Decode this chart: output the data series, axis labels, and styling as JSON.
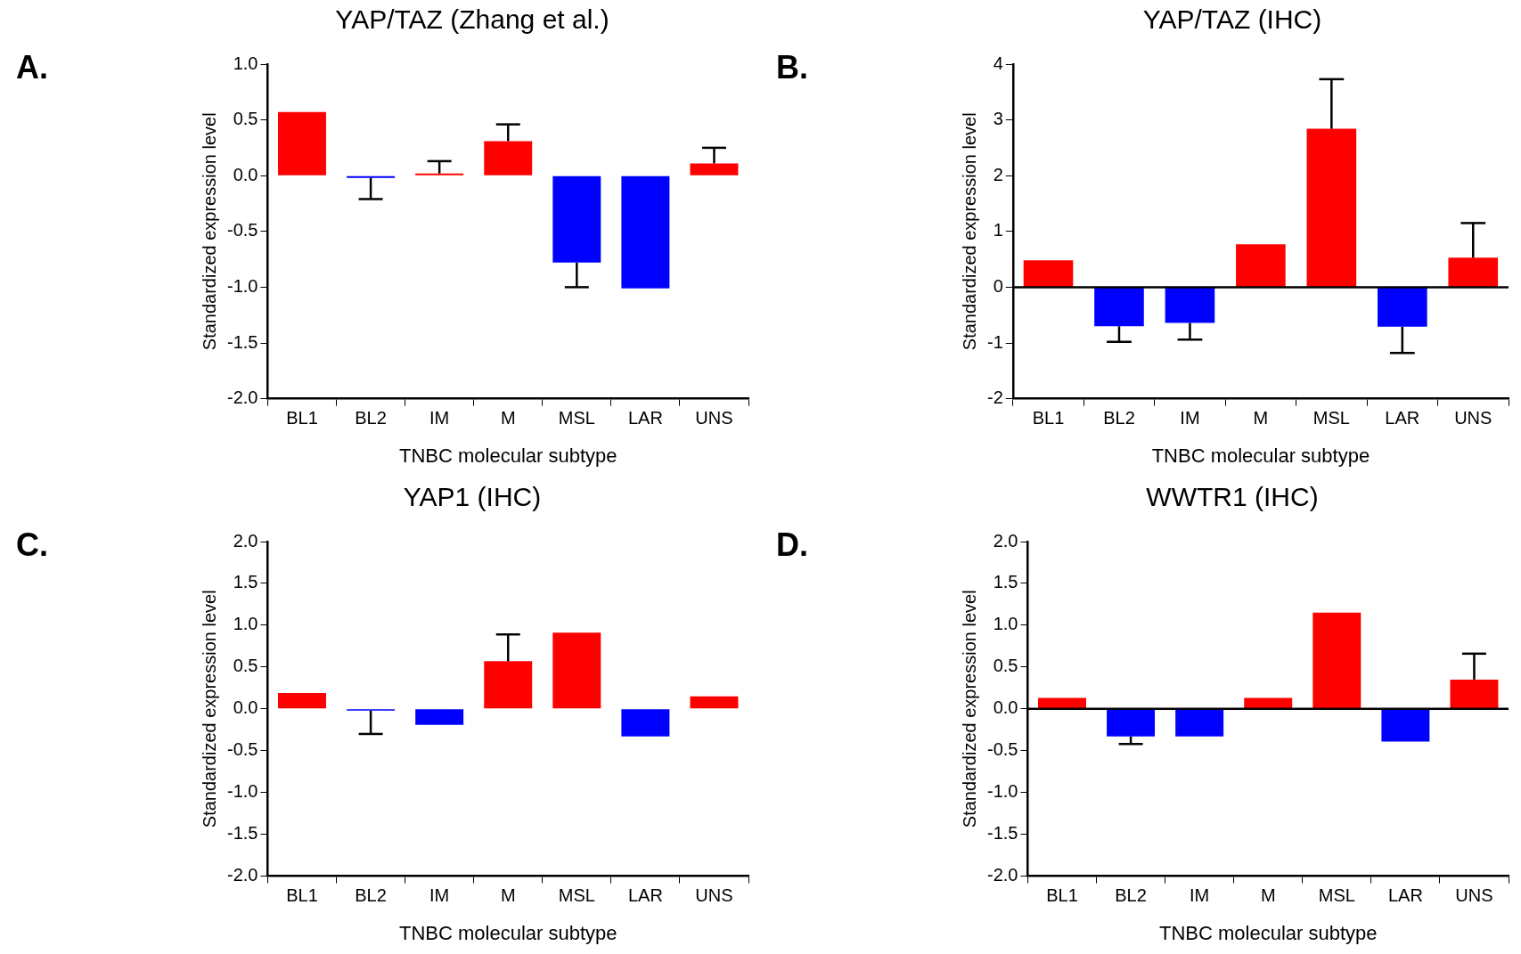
{
  "chart_data": [
    {
      "type": "bar",
      "title": "YAP/TAZ (Zhang et al.)",
      "xlabel": "TNBC molecular subtype",
      "ylabel": "Standardized expression level",
      "annotations": [
        "A."
      ],
      "categories": [
        "BL1",
        "BL2",
        "IM",
        "M",
        "MSL",
        "LAR",
        "UNS"
      ],
      "values": [
        0.57,
        -0.02,
        0.02,
        0.31,
        -0.78,
        -1.01,
        0.11
      ],
      "colors": [
        "#ff0000",
        "#0000ff",
        "#ff0000",
        "#ff0000",
        "#0000ff",
        "#0000ff",
        "#ff0000"
      ],
      "errors": [
        null,
        [
          -0.21,
          -0.02
        ],
        [
          0.02,
          0.13
        ],
        [
          0.31,
          0.46
        ],
        [
          -1.0,
          -0.78
        ],
        null,
        [
          0.11,
          0.25
        ]
      ],
      "ylim": [
        -2,
        1
      ],
      "yticks": [
        {
          "value": 1,
          "label": "1.0"
        },
        0.5,
        {
          "value": 0,
          "label": "0.0"
        },
        -0.5,
        {
          "value": -1,
          "label": "-1.0"
        },
        -1.5,
        {
          "value": -2,
          "label": "-2.0"
        }
      ],
      "grid": false,
      "legend": false
    },
    {
      "type": "bar",
      "title": "YAP/TAZ (IHC)",
      "xlabel": "TNBC molecular subtype",
      "ylabel": "Standardized expression level",
      "annotations": [
        "B."
      ],
      "categories": [
        "BL1",
        "BL2",
        "IM",
        "M",
        "MSL",
        "LAR",
        "UNS"
      ],
      "values": [
        0.48,
        -0.7,
        -0.64,
        0.77,
        2.84,
        -0.71,
        0.53
      ],
      "colors": [
        "#ff0000",
        "#0000ff",
        "#0000ff",
        "#ff0000",
        "#ff0000",
        "#0000ff",
        "#ff0000"
      ],
      "errors": [
        null,
        [
          -0.98,
          -0.7
        ],
        [
          -0.94,
          -0.64
        ],
        null,
        [
          2.84,
          3.73
        ],
        [
          -1.18,
          -0.71
        ],
        [
          0.53,
          1.15
        ]
      ],
      "ylim": [
        -2,
        4
      ],
      "yticks": [
        4,
        3,
        2,
        1,
        0,
        -1,
        -2
      ],
      "grid": false,
      "legend": false,
      "ref_lines": [
        {
          "axis": "y",
          "value": 0
        }
      ]
    },
    {
      "type": "bar",
      "title": "YAP1 (IHC)",
      "xlabel": "TNBC molecular subtype",
      "ylabel": "Standardized expression level",
      "annotations": [
        "C."
      ],
      "categories": [
        "BL1",
        "BL2",
        "IM",
        "M",
        "MSL",
        "LAR",
        "UNS"
      ],
      "values": [
        0.19,
        -0.02,
        -0.19,
        0.57,
        0.91,
        -0.33,
        0.15
      ],
      "colors": [
        "#ff0000",
        "#0000ff",
        "#0000ff",
        "#ff0000",
        "#ff0000",
        "#0000ff",
        "#ff0000"
      ],
      "errors": [
        null,
        [
          -0.3,
          -0.02
        ],
        null,
        [
          0.57,
          0.89
        ],
        null,
        null,
        null
      ],
      "ylim": [
        -2,
        2
      ],
      "yticks": [
        {
          "value": 2,
          "label": "2.0"
        },
        1.5,
        {
          "value": 1,
          "label": "1.0"
        },
        0.5,
        {
          "value": 0,
          "label": "0.0"
        },
        -0.5,
        {
          "value": -1,
          "label": "-1.0"
        },
        -1.5,
        {
          "value": -2,
          "label": "-2.0"
        }
      ],
      "grid": false,
      "legend": false
    },
    {
      "type": "bar",
      "title": "WWTR1 (IHC)",
      "xlabel": "TNBC molecular subtype",
      "ylabel": "Standardized expression level",
      "annotations": [
        "D."
      ],
      "categories": [
        "BL1",
        "BL2",
        "IM",
        "M",
        "MSL",
        "LAR",
        "UNS"
      ],
      "values": [
        0.13,
        -0.33,
        -0.33,
        0.13,
        1.15,
        -0.39,
        0.35
      ],
      "colors": [
        "#ff0000",
        "#0000ff",
        "#0000ff",
        "#ff0000",
        "#ff0000",
        "#0000ff",
        "#ff0000"
      ],
      "errors": [
        null,
        [
          -0.42,
          -0.33
        ],
        null,
        null,
        null,
        null,
        [
          0.35,
          0.66
        ]
      ],
      "ylim": [
        -2,
        2
      ],
      "yticks": [
        {
          "value": 2,
          "label": "2.0"
        },
        1.5,
        {
          "value": 1,
          "label": "1.0"
        },
        0.5,
        {
          "value": 0,
          "label": "0.0"
        },
        -0.5,
        {
          "value": -1,
          "label": "-1.0"
        },
        -1.5,
        {
          "value": -2,
          "label": "-2.0"
        }
      ],
      "grid": false,
      "legend": false,
      "ref_lines": [
        {
          "axis": "y",
          "value": 0
        }
      ]
    }
  ]
}
